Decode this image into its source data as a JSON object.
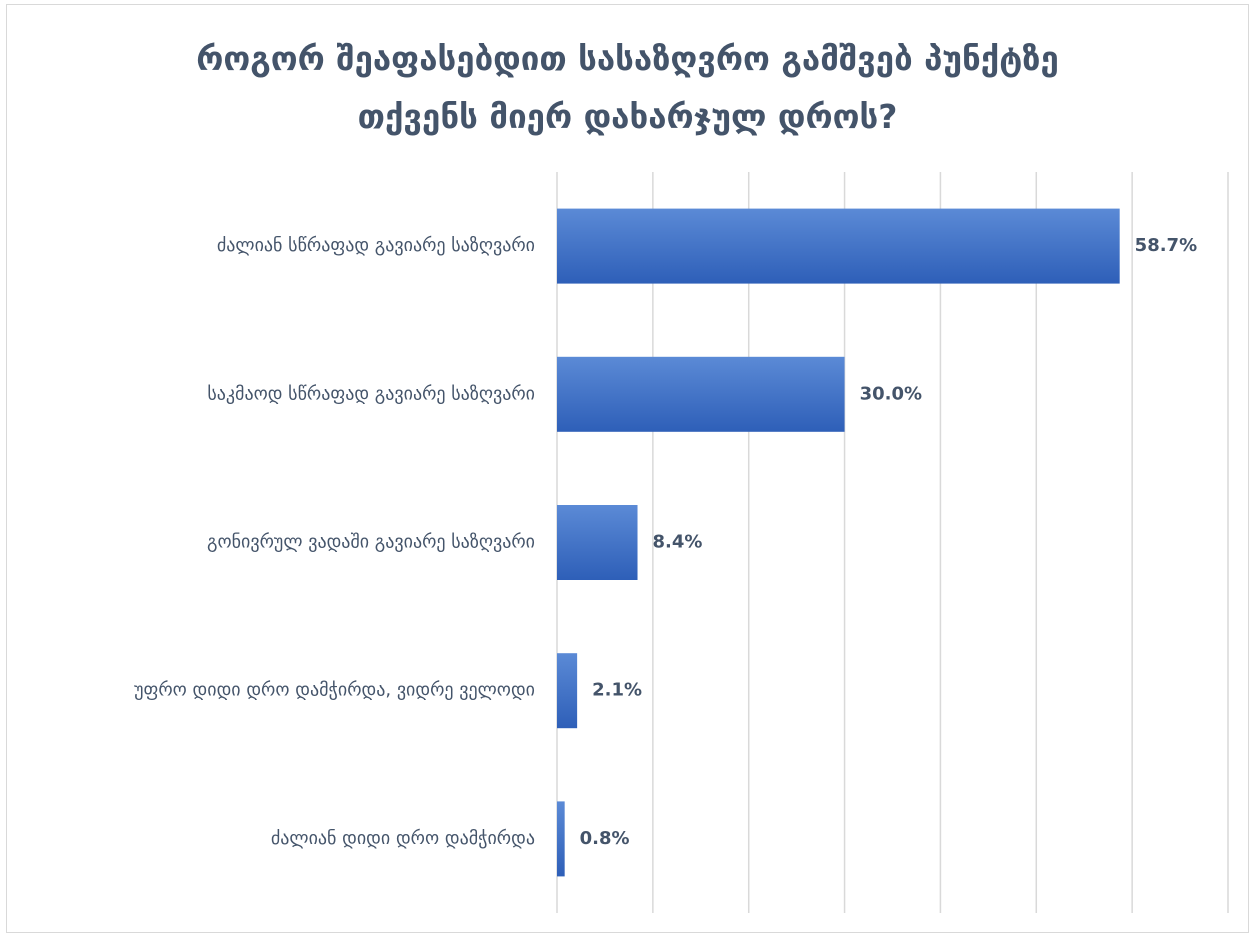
{
  "chart_data": {
    "type": "bar",
    "orientation": "horizontal",
    "title_lines": [
      "როგორ შეაფასებდით სასაზღვრო გამშვებ პუნქტზე",
      "თქვენს მიერ დახარჯულ დროს?"
    ],
    "categories": [
      "ძალიან სწრაფად გავიარე საზღვარი",
      "საკმაოდ სწრაფად გავიარე საზღვარი",
      "გონივრულ ვადაში გავიარე საზღვარი",
      "უფრო დიდი დრო დამჭირდა,  ვიდრე ველოდი",
      "ძალიან დიდი დრო დამჭირდა"
    ],
    "values": [
      58.7,
      30.0,
      8.4,
      2.1,
      0.8
    ],
    "data_labels": [
      "58.7%",
      "30.0%",
      "8.4%",
      "2.1%",
      "0.8%"
    ],
    "xlim": [
      0,
      70
    ],
    "x_gridline_step": 10,
    "grid": true,
    "legend": "none",
    "bar_color_top": "#5b8ad6",
    "bar_color_bottom": "#2e5fb8",
    "text_color": "#44546a",
    "gridline_color": "#d9d9d9"
  }
}
